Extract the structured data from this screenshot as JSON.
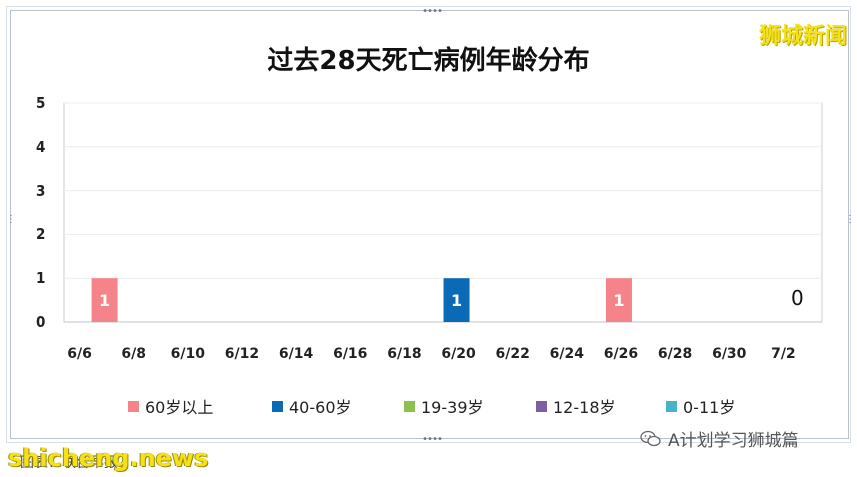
{
  "watermarks": {
    "top_right": "狮城新闻",
    "bottom_left": "shicheng.news",
    "bottom_caption": "图表：联合早报",
    "bottom_right": "A计划学习狮城篇"
  },
  "chart_data": {
    "type": "bar",
    "title": "过去28天死亡病例年龄分布",
    "xlabel": "",
    "ylabel": "",
    "ylim": [
      0,
      5
    ],
    "yticks": [
      "0",
      "1",
      "2",
      "3",
      "4",
      "5"
    ],
    "x_tick_labels": [
      "6/6",
      "6/8",
      "6/10",
      "6/12",
      "6/14",
      "6/16",
      "6/18",
      "6/20",
      "6/22",
      "6/24",
      "6/26",
      "6/28",
      "6/30",
      "7/2"
    ],
    "grid": true,
    "legend_position": "bottom",
    "series": [
      {
        "name": "60岁以上",
        "color": "#f4838a",
        "points": [
          {
            "x": "6/7",
            "value": 1,
            "label": "1"
          },
          {
            "x": "6/26",
            "value": 1,
            "label": "1"
          }
        ]
      },
      {
        "name": "40-60岁",
        "color": "#0b6ab5",
        "points": [
          {
            "x": "6/20",
            "value": 1,
            "label": "1"
          }
        ]
      },
      {
        "name": "19-39岁",
        "color": "#8ec04e",
        "points": []
      },
      {
        "name": "12-18岁",
        "color": "#7e5ea3",
        "points": []
      },
      {
        "name": "0-11岁",
        "color": "#45b4c8",
        "points": []
      }
    ],
    "annotations": [
      {
        "x": "7/2",
        "text": "0"
      }
    ]
  }
}
